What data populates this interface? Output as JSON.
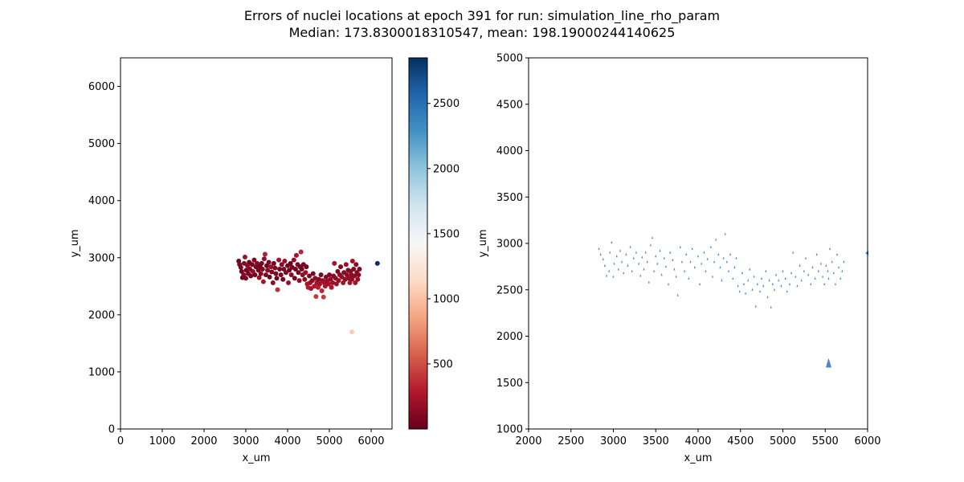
{
  "header": {
    "title_line1": "Errors of nuclei locations at epoch 391 for run: simulation_line_rho_param",
    "title_line2": "Median: 173.8300018310547, mean: 198.19000244140625"
  },
  "chart_data": [
    {
      "type": "scatter",
      "title": "",
      "xlabel": "x_um",
      "ylabel": "y_um",
      "xlim": [
        0,
        6500
      ],
      "ylim": [
        0,
        6500
      ],
      "xticks": [
        0,
        1000,
        2000,
        3000,
        4000,
        5000,
        6000
      ],
      "yticks": [
        0,
        1000,
        2000,
        3000,
        4000,
        5000,
        6000
      ],
      "grid": false,
      "colormap": "RdBu",
      "colorbar": {
        "min": 0,
        "max": 2850,
        "ticks": [
          500,
          1000,
          1500,
          2000,
          2500
        ]
      },
      "points": [
        [
          2830,
          2940,
          40
        ],
        [
          2850,
          2880,
          80
        ],
        [
          2880,
          2830,
          60
        ],
        [
          2900,
          2760,
          30
        ],
        [
          2920,
          2650,
          50
        ],
        [
          2950,
          2700,
          120
        ],
        [
          2960,
          2900,
          90
        ],
        [
          2980,
          3010,
          200
        ],
        [
          3000,
          2640,
          70
        ],
        [
          3010,
          2780,
          40
        ],
        [
          3040,
          2860,
          150
        ],
        [
          3060,
          2720,
          60
        ],
        [
          3080,
          2920,
          30
        ],
        [
          3100,
          2800,
          110
        ],
        [
          3120,
          2680,
          80
        ],
        [
          3150,
          2880,
          50
        ],
        [
          3170,
          2760,
          180
        ],
        [
          3200,
          2960,
          90
        ],
        [
          3220,
          2700,
          40
        ],
        [
          3240,
          2840,
          60
        ],
        [
          3270,
          2900,
          130
        ],
        [
          3300,
          2780,
          70
        ],
        [
          3320,
          2650,
          210
        ],
        [
          3340,
          2850,
          30
        ],
        [
          3360,
          2720,
          100
        ],
        [
          3380,
          2900,
          60
        ],
        [
          3400,
          2800,
          80
        ],
        [
          3420,
          2580,
          250
        ],
        [
          3440,
          2980,
          160
        ],
        [
          3460,
          3060,
          300
        ],
        [
          3480,
          2700,
          90
        ],
        [
          3500,
          2860,
          40
        ],
        [
          3520,
          2780,
          120
        ],
        [
          3550,
          2920,
          70
        ],
        [
          3570,
          2660,
          50
        ],
        [
          3600,
          2840,
          200
        ],
        [
          3620,
          2750,
          60
        ],
        [
          3650,
          2560,
          140
        ],
        [
          3670,
          2900,
          30
        ],
        [
          3700,
          2820,
          90
        ],
        [
          3720,
          2720,
          80
        ],
        [
          3740,
          2640,
          40
        ],
        [
          3760,
          2440,
          380
        ],
        [
          3790,
          2960,
          220
        ],
        [
          3810,
          2800,
          50
        ],
        [
          3840,
          2700,
          70
        ],
        [
          3860,
          2880,
          110
        ],
        [
          3890,
          2620,
          40
        ],
        [
          3910,
          2800,
          60
        ],
        [
          3930,
          2940,
          170
        ],
        [
          3960,
          2740,
          80
        ],
        [
          4000,
          2860,
          40
        ],
        [
          4020,
          2560,
          190
        ],
        [
          4040,
          2780,
          60
        ],
        [
          4070,
          2900,
          30
        ],
        [
          4090,
          2700,
          120
        ],
        [
          4110,
          2830,
          50
        ],
        [
          4150,
          2960,
          180
        ],
        [
          4170,
          2640,
          70
        ],
        [
          4190,
          2800,
          40
        ],
        [
          4210,
          3040,
          230
        ],
        [
          4240,
          2880,
          90
        ],
        [
          4260,
          2740,
          50
        ],
        [
          4280,
          2600,
          160
        ],
        [
          4300,
          2840,
          60
        ],
        [
          4320,
          3100,
          330
        ],
        [
          4340,
          2800,
          40
        ],
        [
          4360,
          2700,
          140
        ],
        [
          4380,
          2880,
          80
        ],
        [
          4410,
          2620,
          120
        ],
        [
          4430,
          2740,
          190
        ],
        [
          4450,
          2840,
          60
        ],
        [
          4470,
          2540,
          240
        ],
        [
          4490,
          2480,
          310
        ],
        [
          4520,
          2680,
          90
        ],
        [
          4540,
          2560,
          200
        ],
        [
          4560,
          2460,
          260
        ],
        [
          4590,
          2600,
          140
        ],
        [
          4610,
          2720,
          70
        ],
        [
          4640,
          2500,
          280
        ],
        [
          4660,
          2640,
          160
        ],
        [
          4680,
          2320,
          420
        ],
        [
          4700,
          2560,
          210
        ],
        [
          4730,
          2480,
          300
        ],
        [
          4750,
          2620,
          120
        ],
        [
          4770,
          2540,
          230
        ],
        [
          4800,
          2700,
          80
        ],
        [
          4820,
          2420,
          340
        ],
        [
          4840,
          2600,
          170
        ],
        [
          4860,
          2310,
          430
        ],
        [
          4880,
          2560,
          220
        ],
        [
          4900,
          2500,
          270
        ],
        [
          4920,
          2660,
          110
        ],
        [
          4950,
          2600,
          190
        ],
        [
          4980,
          2540,
          230
        ],
        [
          5000,
          2700,
          90
        ],
        [
          5030,
          2620,
          150
        ],
        [
          5050,
          2480,
          260
        ],
        [
          5080,
          2560,
          200
        ],
        [
          5100,
          2680,
          120
        ],
        [
          5120,
          2900,
          240
        ],
        [
          5150,
          2640,
          160
        ],
        [
          5170,
          2540,
          210
        ],
        [
          5200,
          2760,
          100
        ],
        [
          5220,
          2600,
          180
        ],
        [
          5250,
          2700,
          140
        ],
        [
          5270,
          2840,
          90
        ],
        [
          5300,
          2660,
          170
        ],
        [
          5330,
          2560,
          220
        ],
        [
          5350,
          2740,
          110
        ],
        [
          5380,
          2620,
          150
        ],
        [
          5400,
          2880,
          200
        ],
        [
          5420,
          2700,
          130
        ],
        [
          5450,
          2780,
          90
        ],
        [
          5470,
          2640,
          170
        ],
        [
          5490,
          2560,
          240
        ],
        [
          5510,
          2760,
          120
        ],
        [
          5530,
          2700,
          160
        ],
        [
          5540,
          2620,
          180
        ],
        [
          5555,
          2940,
          210
        ],
        [
          5580,
          2800,
          100
        ],
        [
          5600,
          2680,
          150
        ],
        [
          5620,
          2560,
          230
        ],
        [
          5640,
          2880,
          120
        ],
        [
          5660,
          2740,
          90
        ],
        [
          5680,
          2620,
          170
        ],
        [
          5700,
          2700,
          140
        ],
        [
          5720,
          2800,
          110
        ],
        [
          5540,
          1700,
          1050
        ],
        [
          6150,
          2900,
          2850
        ]
      ]
    },
    {
      "type": "scatter",
      "title": "",
      "xlabel": "x_um",
      "ylabel": "y_um",
      "xlim": [
        2000,
        6000
      ],
      "ylim": [
        1000,
        5000
      ],
      "xticks": [
        2000,
        2500,
        3000,
        3500,
        4000,
        4500,
        5000,
        5500,
        6000
      ],
      "yticks": [
        1000,
        1500,
        2000,
        2500,
        3000,
        3500,
        4000,
        4500,
        5000
      ],
      "grid": false,
      "marker_color": "#4a86cf"
    }
  ]
}
